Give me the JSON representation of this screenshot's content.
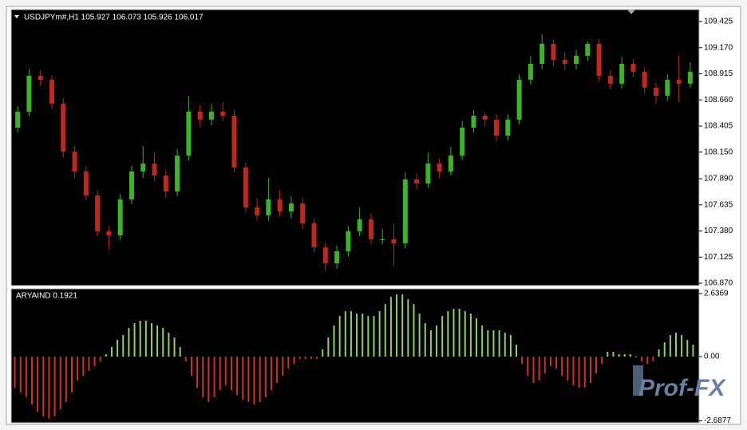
{
  "chart_data": [
    {
      "type": "candlestick",
      "title": "USDJPYm#,H1  105.927 106.073 105.926 106.017",
      "up_color": "#3cb428",
      "down_color": "#c0281e",
      "open": [
        108.389,
        108.545,
        108.895,
        108.856,
        108.623,
        108.156,
        107.961,
        107.727,
        107.377,
        107.338,
        107.688,
        107.961,
        108.039,
        107.922,
        107.766,
        108.117,
        108.545,
        108.467,
        108.545,
        108.506,
        108.0,
        107.61,
        107.533,
        107.688,
        107.571,
        107.649,
        107.455,
        107.221,
        107.065,
        107.182,
        107.377,
        107.494,
        107.299,
        107.299,
        107.26,
        107.883,
        107.844,
        108.039,
        107.961,
        108.117,
        108.389,
        108.506,
        108.467,
        108.311,
        108.467,
        108.856,
        109.012,
        109.207,
        109.051,
        109.012,
        109.09,
        109.207,
        108.895,
        108.818,
        109.012,
        108.934,
        108.779,
        108.701,
        108.856,
        108.818
      ],
      "high": [
        108.6,
        108.96,
        108.95,
        108.9,
        108.68,
        108.21,
        108.01,
        107.78,
        107.43,
        107.74,
        108.02,
        108.21,
        108.15,
        107.98,
        108.18,
        108.7,
        108.61,
        108.62,
        108.64,
        108.56,
        108.05,
        107.7,
        107.9,
        107.78,
        107.72,
        107.7,
        107.5,
        107.27,
        107.24,
        107.43,
        107.61,
        107.55,
        107.4,
        107.45,
        107.95,
        107.94,
        108.15,
        108.09,
        108.2,
        108.45,
        108.56,
        108.54,
        108.52,
        108.52,
        108.91,
        109.09,
        109.3,
        109.25,
        109.12,
        109.15,
        109.23,
        109.25,
        108.95,
        109.08,
        109.06,
        108.98,
        108.83,
        108.91,
        109.09,
        109.03
      ],
      "low": [
        108.34,
        108.5,
        108.8,
        108.57,
        108.1,
        107.9,
        107.68,
        107.33,
        107.2,
        107.29,
        107.64,
        107.9,
        107.87,
        107.7,
        107.72,
        108.07,
        108.4,
        108.41,
        108.45,
        107.95,
        107.56,
        107.48,
        107.48,
        107.52,
        107.5,
        107.4,
        107.17,
        106.99,
        107.01,
        107.13,
        107.33,
        107.25,
        107.25,
        107.04,
        107.21,
        107.79,
        107.8,
        107.9,
        107.92,
        108.07,
        108.34,
        108.4,
        108.25,
        108.26,
        108.42,
        108.81,
        108.96,
        108.99,
        108.95,
        108.96,
        109.04,
        108.84,
        108.76,
        108.77,
        108.88,
        108.72,
        108.62,
        108.65,
        108.64,
        108.78
      ],
      "close": [
        108.545,
        108.895,
        108.856,
        108.623,
        108.156,
        107.961,
        107.727,
        107.377,
        107.338,
        107.688,
        107.961,
        108.039,
        107.922,
        107.766,
        108.117,
        108.545,
        108.467,
        108.545,
        108.506,
        108.0,
        107.61,
        107.533,
        107.688,
        107.571,
        107.649,
        107.455,
        107.221,
        107.065,
        107.182,
        107.377,
        107.494,
        107.299,
        107.299,
        107.26,
        107.883,
        107.844,
        108.039,
        107.961,
        108.117,
        108.389,
        108.506,
        108.467,
        108.311,
        108.467,
        108.856,
        109.012,
        109.207,
        109.051,
        109.012,
        109.09,
        109.207,
        108.895,
        108.818,
        109.012,
        108.934,
        108.779,
        108.701,
        108.856,
        108.818,
        108.934
      ],
      "ylim": [
        106.847,
        109.526
      ],
      "yticks": [
        109.425,
        {
          "value": 109.17,
          "label": "109.170"
        },
        108.915,
        {
          "value": 108.66,
          "label": "108.660"
        },
        108.405,
        {
          "value": 108.15,
          "label": "108.150"
        },
        {
          "value": 107.89,
          "label": "107.890"
        },
        107.635,
        {
          "value": 107.38,
          "label": "107.380"
        },
        107.125,
        {
          "value": 106.87,
          "label": "106.870"
        }
      ]
    },
    {
      "type": "bar",
      "title": "ARYAIND 0.1921",
      "up_color": "#8cd264",
      "down_color": "#d03224",
      "values": [
        -1.3,
        -1.5,
        -1.7,
        -2.0,
        -2.3,
        -2.5,
        -2.6,
        -2.5,
        -2.2,
        -1.9,
        -1.5,
        -1.0,
        -0.8,
        -0.6,
        -0.4,
        -0.2,
        0.1,
        0.4,
        0.7,
        0.9,
        1.2,
        1.4,
        1.5,
        1.5,
        1.4,
        1.3,
        1.2,
        1.0,
        0.8,
        0.4,
        -0.2,
        -0.8,
        -1.3,
        -1.7,
        -1.9,
        -1.7,
        -1.4,
        -1.2,
        -1.4,
        -1.6,
        -1.8,
        -1.9,
        -2.0,
        -1.9,
        -1.7,
        -1.4,
        -1.1,
        -0.8,
        -0.5,
        -0.3,
        -0.1,
        -0.1,
        -0.1,
        -0.1,
        0.3,
        0.8,
        1.3,
        1.7,
        1.9,
        1.9,
        1.8,
        1.8,
        1.7,
        1.7,
        1.9,
        2.2,
        2.5,
        2.6,
        2.6,
        2.4,
        2.2,
        1.8,
        1.4,
        1.1,
        1.3,
        1.7,
        1.9,
        2.0,
        2.0,
        1.9,
        1.8,
        1.6,
        1.3,
        1.1,
        1.1,
        1.1,
        1.0,
        0.9,
        0.5,
        -0.3,
        -0.8,
        -1.1,
        -1.0,
        -0.7,
        -0.4,
        -0.5,
        -0.8,
        -1.0,
        -1.2,
        -1.3,
        -1.3,
        -1.1,
        -0.7,
        -0.3,
        0.2,
        0.2,
        0.1,
        0.1,
        0.1,
        0.0,
        -0.2,
        -0.3,
        -0.2,
        0.3,
        0.6,
        0.9,
        1.0,
        0.9,
        0.7,
        0.5
      ],
      "ylim": [
        -2.737,
        2.803
      ],
      "yticks": [
        2.6369,
        {
          "value": 0,
          "label": "0.00"
        },
        -2.6877
      ]
    }
  ],
  "watermark": "Prof-FX"
}
